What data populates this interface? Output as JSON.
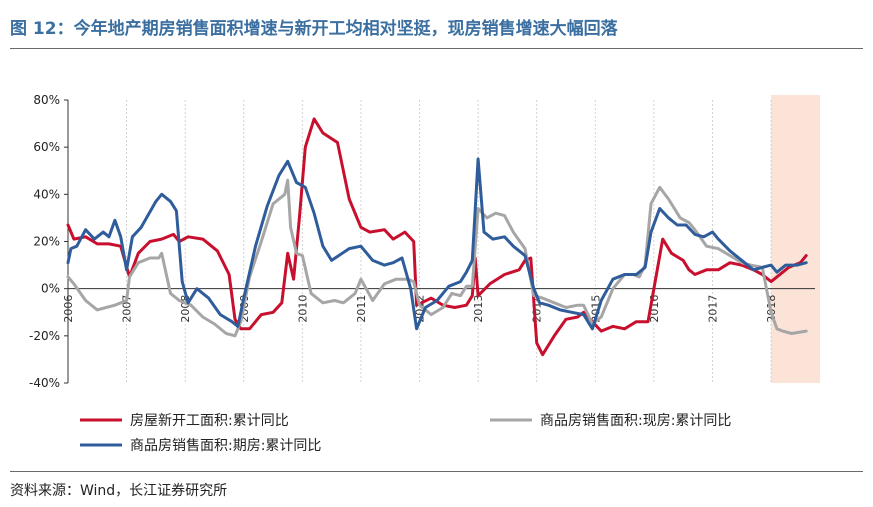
{
  "title": "图 12：今年地产期房销售面积增速与新开工均相对坚挺，现房销售增速大幅回落",
  "source": "资料来源：Wind，长江证券研究所",
  "colors": {
    "title": "#3a6fa0",
    "red": "#c8102e",
    "gray": "#a6a6a6",
    "blue": "#2f5c9a",
    "highlight": "#fbe3d8"
  },
  "chart_data": {
    "type": "line",
    "ylim": [
      -40,
      80
    ],
    "yticks": [
      "80%",
      "60%",
      "40%",
      "20%",
      "0%",
      "-20%",
      "-40%"
    ],
    "ytick_values": [
      80,
      60,
      40,
      20,
      0,
      -20,
      -40
    ],
    "xlim": [
      2006.0,
      2018.75
    ],
    "xtick_labels": [
      "2006",
      "2007",
      "2008",
      "2009",
      "2010",
      "2011",
      "2012",
      "2013",
      "2014",
      "2015",
      "2016",
      "2017",
      "2018"
    ],
    "xtick_values": [
      2006.0,
      2007.0,
      2008.0,
      2009.0,
      2010.0,
      2011.0,
      2012.0,
      2013.0,
      2014.0,
      2015.0,
      2016.0,
      2017.0,
      2018.0
    ],
    "highlight_range": [
      2018.0,
      2018.75
    ],
    "legend": [
      {
        "name": "房屋新开工面积:累计同比",
        "color": "#c8102e"
      },
      {
        "name": "商品房销售面积:现房:累计同比",
        "color": "#a6a6a6"
      },
      {
        "name": "商品房销售面积:期房:累计同比",
        "color": "#2f5c9a"
      }
    ],
    "series": [
      {
        "name": "房屋新开工面积:累计同比",
        "color": "#c8102e",
        "points": [
          [
            2006.0,
            27
          ],
          [
            2006.1,
            21
          ],
          [
            2006.3,
            22
          ],
          [
            2006.5,
            19
          ],
          [
            2006.7,
            19
          ],
          [
            2006.9,
            18
          ],
          [
            2007.05,
            5
          ],
          [
            2007.2,
            15
          ],
          [
            2007.4,
            20
          ],
          [
            2007.6,
            21
          ],
          [
            2007.8,
            23
          ],
          [
            2007.9,
            20
          ],
          [
            2008.05,
            22
          ],
          [
            2008.3,
            21
          ],
          [
            2008.55,
            16
          ],
          [
            2008.75,
            6
          ],
          [
            2008.85,
            -13
          ],
          [
            2008.95,
            -17
          ],
          [
            2009.1,
            -17
          ],
          [
            2009.3,
            -11
          ],
          [
            2009.5,
            -10
          ],
          [
            2009.65,
            -6
          ],
          [
            2009.75,
            15
          ],
          [
            2009.85,
            4
          ],
          [
            2009.95,
            30
          ],
          [
            2010.05,
            60
          ],
          [
            2010.2,
            72
          ],
          [
            2010.35,
            66
          ],
          [
            2010.6,
            62
          ],
          [
            2010.8,
            38
          ],
          [
            2011.0,
            26
          ],
          [
            2011.15,
            24
          ],
          [
            2011.4,
            25
          ],
          [
            2011.55,
            21
          ],
          [
            2011.75,
            24
          ],
          [
            2011.9,
            20
          ],
          [
            2011.95,
            -7
          ],
          [
            2012.2,
            -4
          ],
          [
            2012.4,
            -7
          ],
          [
            2012.6,
            -8
          ],
          [
            2012.8,
            -7
          ],
          [
            2012.9,
            -3
          ],
          [
            2012.95,
            13
          ],
          [
            2013.0,
            -3
          ],
          [
            2013.2,
            2
          ],
          [
            2013.45,
            6
          ],
          [
            2013.7,
            8
          ],
          [
            2013.8,
            12
          ],
          [
            2013.9,
            13
          ],
          [
            2014.0,
            -23
          ],
          [
            2014.1,
            -28
          ],
          [
            2014.3,
            -20
          ],
          [
            2014.5,
            -13
          ],
          [
            2014.7,
            -12
          ],
          [
            2014.8,
            -10
          ],
          [
            2014.95,
            -14
          ],
          [
            2015.1,
            -18
          ],
          [
            2015.3,
            -16
          ],
          [
            2015.5,
            -17
          ],
          [
            2015.7,
            -14
          ],
          [
            2015.9,
            -14
          ],
          [
            2016.0,
            0
          ],
          [
            2016.15,
            21
          ],
          [
            2016.3,
            15
          ],
          [
            2016.5,
            12
          ],
          [
            2016.6,
            8
          ],
          [
            2016.7,
            6
          ],
          [
            2016.9,
            8
          ],
          [
            2017.1,
            8
          ],
          [
            2017.3,
            11
          ],
          [
            2017.5,
            10
          ],
          [
            2017.7,
            8
          ],
          [
            2017.85,
            6
          ],
          [
            2018.0,
            3
          ],
          [
            2018.1,
            5
          ],
          [
            2018.3,
            9
          ],
          [
            2018.5,
            11
          ],
          [
            2018.6,
            14
          ]
        ]
      },
      {
        "name": "商品房销售面积:现房:累计同比",
        "color": "#a6a6a6",
        "points": [
          [
            2006.0,
            5
          ],
          [
            2006.1,
            2
          ],
          [
            2006.3,
            -5
          ],
          [
            2006.5,
            -9
          ],
          [
            2006.65,
            -8
          ],
          [
            2006.8,
            -7
          ],
          [
            2007.0,
            -5
          ],
          [
            2007.05,
            5
          ],
          [
            2007.2,
            11
          ],
          [
            2007.4,
            13
          ],
          [
            2007.55,
            13
          ],
          [
            2007.6,
            15
          ],
          [
            2007.75,
            -2
          ],
          [
            2007.9,
            -5
          ],
          [
            2008.1,
            -7
          ],
          [
            2008.3,
            -12
          ],
          [
            2008.5,
            -15
          ],
          [
            2008.7,
            -19
          ],
          [
            2008.85,
            -20
          ],
          [
            2008.95,
            -14
          ],
          [
            2009.1,
            5
          ],
          [
            2009.3,
            20
          ],
          [
            2009.5,
            36
          ],
          [
            2009.7,
            40
          ],
          [
            2009.75,
            46
          ],
          [
            2009.8,
            26
          ],
          [
            2009.9,
            15
          ],
          [
            2010.0,
            14
          ],
          [
            2010.15,
            -2
          ],
          [
            2010.35,
            -6
          ],
          [
            2010.55,
            -5
          ],
          [
            2010.7,
            -6
          ],
          [
            2010.9,
            -2
          ],
          [
            2011.0,
            4
          ],
          [
            2011.2,
            -5
          ],
          [
            2011.4,
            2
          ],
          [
            2011.6,
            4
          ],
          [
            2011.8,
            4
          ],
          [
            2011.9,
            3
          ],
          [
            2012.0,
            -7
          ],
          [
            2012.2,
            -11
          ],
          [
            2012.4,
            -8
          ],
          [
            2012.55,
            -2
          ],
          [
            2012.7,
            -3
          ],
          [
            2012.8,
            1
          ],
          [
            2012.9,
            1
          ],
          [
            2013.0,
            34
          ],
          [
            2013.15,
            30
          ],
          [
            2013.3,
            32
          ],
          [
            2013.45,
            31
          ],
          [
            2013.6,
            24
          ],
          [
            2013.8,
            17
          ],
          [
            2013.95,
            -3
          ],
          [
            2014.1,
            -4
          ],
          [
            2014.3,
            -6
          ],
          [
            2014.5,
            -8
          ],
          [
            2014.7,
            -7
          ],
          [
            2014.8,
            -7
          ],
          [
            2014.95,
            -15
          ],
          [
            2015.1,
            -12
          ],
          [
            2015.3,
            0
          ],
          [
            2015.5,
            6
          ],
          [
            2015.65,
            6
          ],
          [
            2015.75,
            5
          ],
          [
            2015.85,
            10
          ],
          [
            2015.95,
            36
          ],
          [
            2016.1,
            43
          ],
          [
            2016.25,
            38
          ],
          [
            2016.45,
            30
          ],
          [
            2016.6,
            28
          ],
          [
            2016.7,
            25
          ],
          [
            2016.9,
            18
          ],
          [
            2017.1,
            17
          ],
          [
            2017.3,
            14
          ],
          [
            2017.5,
            11
          ],
          [
            2017.65,
            10
          ],
          [
            2017.85,
            9
          ],
          [
            2018.0,
            -10
          ],
          [
            2018.1,
            -17
          ],
          [
            2018.2,
            -18
          ],
          [
            2018.35,
            -19
          ],
          [
            2018.6,
            -18
          ]
        ]
      },
      {
        "name": "商品房销售面积:期房:累计同比",
        "color": "#2f5c9a",
        "points": [
          [
            2006.0,
            11
          ],
          [
            2006.05,
            17
          ],
          [
            2006.15,
            18
          ],
          [
            2006.3,
            25
          ],
          [
            2006.45,
            21
          ],
          [
            2006.6,
            24
          ],
          [
            2006.7,
            22
          ],
          [
            2006.8,
            29
          ],
          [
            2006.9,
            22
          ],
          [
            2007.0,
            8
          ],
          [
            2007.1,
            22
          ],
          [
            2007.25,
            26
          ],
          [
            2007.5,
            37
          ],
          [
            2007.6,
            40
          ],
          [
            2007.75,
            37
          ],
          [
            2007.85,
            33
          ],
          [
            2007.95,
            3
          ],
          [
            2008.05,
            -6
          ],
          [
            2008.2,
            0
          ],
          [
            2008.4,
            -4
          ],
          [
            2008.6,
            -11
          ],
          [
            2008.8,
            -14
          ],
          [
            2008.9,
            -16
          ],
          [
            2009.0,
            -4
          ],
          [
            2009.2,
            18
          ],
          [
            2009.4,
            35
          ],
          [
            2009.6,
            48
          ],
          [
            2009.75,
            54
          ],
          [
            2009.9,
            45
          ],
          [
            2010.05,
            43
          ],
          [
            2010.2,
            32
          ],
          [
            2010.35,
            18
          ],
          [
            2010.5,
            12
          ],
          [
            2010.8,
            17
          ],
          [
            2011.0,
            18
          ],
          [
            2011.2,
            12
          ],
          [
            2011.4,
            10
          ],
          [
            2011.55,
            11
          ],
          [
            2011.7,
            13
          ],
          [
            2011.85,
            0
          ],
          [
            2011.95,
            -17
          ],
          [
            2012.1,
            -8
          ],
          [
            2012.3,
            -5
          ],
          [
            2012.5,
            1
          ],
          [
            2012.7,
            3
          ],
          [
            2012.8,
            7
          ],
          [
            2012.9,
            12
          ],
          [
            2013.0,
            55
          ],
          [
            2013.1,
            24
          ],
          [
            2013.25,
            21
          ],
          [
            2013.45,
            22
          ],
          [
            2013.6,
            18
          ],
          [
            2013.8,
            14
          ],
          [
            2013.95,
            0
          ],
          [
            2014.05,
            -6
          ],
          [
            2014.2,
            -7
          ],
          [
            2014.4,
            -9
          ],
          [
            2014.6,
            -10
          ],
          [
            2014.8,
            -11
          ],
          [
            2014.95,
            -17
          ],
          [
            2015.1,
            -5
          ],
          [
            2015.3,
            4
          ],
          [
            2015.5,
            6
          ],
          [
            2015.7,
            6
          ],
          [
            2015.85,
            9
          ],
          [
            2015.95,
            24
          ],
          [
            2016.1,
            34
          ],
          [
            2016.25,
            30
          ],
          [
            2016.4,
            27
          ],
          [
            2016.55,
            27
          ],
          [
            2016.7,
            23
          ],
          [
            2016.85,
            22
          ],
          [
            2017.0,
            24
          ],
          [
            2017.1,
            21
          ],
          [
            2017.3,
            16
          ],
          [
            2017.5,
            12
          ],
          [
            2017.7,
            8
          ],
          [
            2017.85,
            9
          ],
          [
            2018.0,
            10
          ],
          [
            2018.1,
            7
          ],
          [
            2018.25,
            10
          ],
          [
            2018.45,
            10
          ],
          [
            2018.6,
            11
          ]
        ]
      }
    ]
  }
}
